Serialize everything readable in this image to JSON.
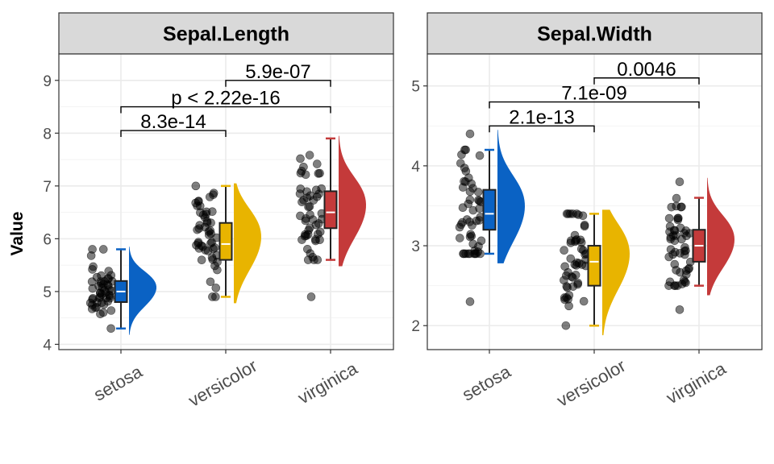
{
  "ylabel": "Value",
  "colors": {
    "setosa": "#0a62c4",
    "versicolor": "#e8b400",
    "virginica": "#c43a3a"
  },
  "chart_data": [
    {
      "type": "box",
      "title": "Sepal.Length",
      "categories": [
        "setosa",
        "versicolor",
        "virginica"
      ],
      "ylim": [
        3.9,
        9.5
      ],
      "yticks": [
        "4",
        "5",
        "6",
        "7",
        "8",
        "9"
      ],
      "boxes": [
        {
          "name": "setosa",
          "min": 4.3,
          "q1": 4.8,
          "median": 5.0,
          "q3": 5.2,
          "max": 5.8
        },
        {
          "name": "versicolor",
          "min": 4.9,
          "q1": 5.6,
          "median": 5.9,
          "q3": 6.3,
          "max": 7.0
        },
        {
          "name": "virginica",
          "min": 5.6,
          "q1": 6.2,
          "median": 6.5,
          "q3": 6.9,
          "max": 7.9,
          "outliers": [
            4.9
          ]
        }
      ],
      "comparisons": [
        {
          "group1": "versicolor",
          "group2": "virginica",
          "label": "5.9e-07",
          "y": 9.0
        },
        {
          "group1": "setosa",
          "group2": "virginica",
          "label": "p < 2.22e-16",
          "y": 8.5
        },
        {
          "group1": "setosa",
          "group2": "versicolor",
          "label": "8.3e-14",
          "y": 8.05
        }
      ],
      "grid": true
    },
    {
      "type": "box",
      "title": "Sepal.Width",
      "categories": [
        "setosa",
        "versicolor",
        "virginica"
      ],
      "ylim": [
        1.7,
        5.4
      ],
      "yticks": [
        "2",
        "3",
        "4",
        "5"
      ],
      "boxes": [
        {
          "name": "setosa",
          "min": 2.9,
          "q1": 3.2,
          "median": 3.4,
          "q3": 3.7,
          "max": 4.2,
          "outliers": [
            4.4,
            2.3
          ]
        },
        {
          "name": "versicolor",
          "min": 2.0,
          "q1": 2.5,
          "median": 2.8,
          "q3": 3.0,
          "max": 3.4
        },
        {
          "name": "virginica",
          "min": 2.5,
          "q1": 2.8,
          "median": 3.0,
          "q3": 3.2,
          "max": 3.6,
          "outliers": [
            3.8,
            2.2
          ]
        }
      ],
      "comparisons": [
        {
          "group1": "versicolor",
          "group2": "virginica",
          "label": "0.0046",
          "y": 5.1
        },
        {
          "group1": "setosa",
          "group2": "virginica",
          "label": "7.1e-09",
          "y": 4.8
        },
        {
          "group1": "setosa",
          "group2": "versicolor",
          "label": "2.1e-13",
          "y": 4.5
        }
      ],
      "grid": true
    }
  ]
}
